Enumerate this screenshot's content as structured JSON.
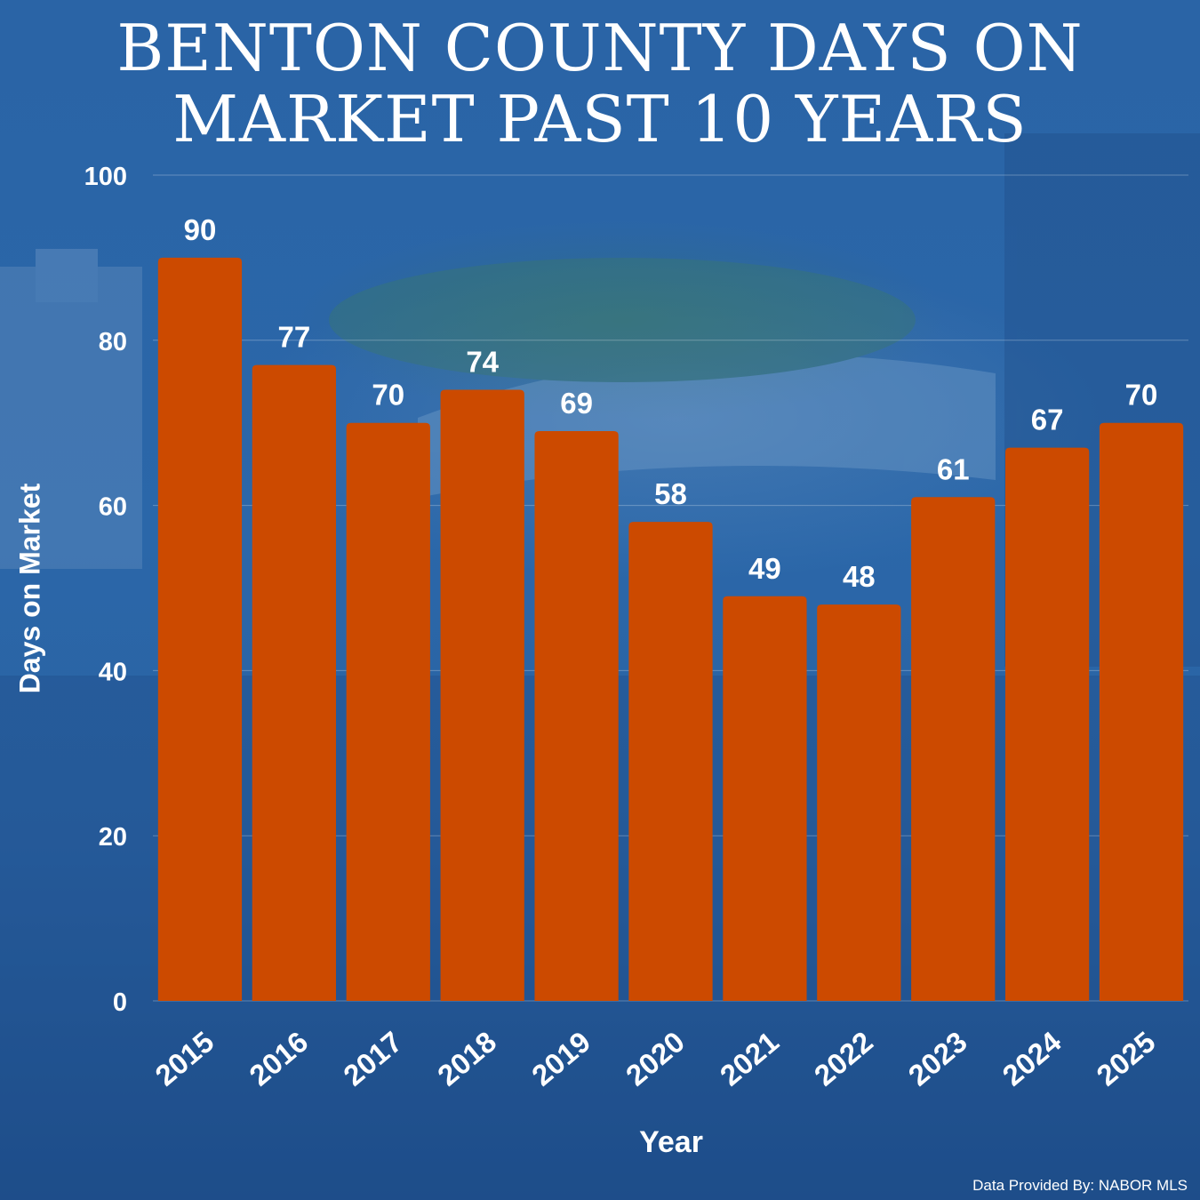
{
  "title_lines": [
    "BENTON COUNTY DAYS ON",
    "MARKET PAST 10 YEARS"
  ],
  "source_note": "Data Provided By: NABOR MLS",
  "colors": {
    "bar": "#cc4a00",
    "text": "#ffffff",
    "grid": "rgba(255,255,255,0.28)"
  },
  "chart_data": {
    "type": "bar",
    "title": "BENTON COUNTY DAYS ON MARKET PAST 10 YEARS",
    "xlabel": "Year",
    "ylabel": "Days on Market",
    "categories": [
      "2015",
      "2016",
      "2017",
      "2018",
      "2019",
      "2020",
      "2021",
      "2022",
      "2023",
      "2024",
      "2025"
    ],
    "values": [
      90,
      77,
      70,
      74,
      69,
      58,
      49,
      48,
      61,
      67,
      70
    ],
    "value_labels": [
      "90",
      "77",
      "70",
      "74",
      "69",
      "58",
      "49",
      "48",
      "61",
      "67",
      "70"
    ],
    "ylim": [
      0,
      100
    ],
    "yticks": [
      0,
      20,
      40,
      60,
      80,
      100
    ],
    "ytick_labels": [
      "0",
      "20",
      "40",
      "60",
      "80",
      "100"
    ],
    "grid": true,
    "data_labels": "above bars"
  }
}
